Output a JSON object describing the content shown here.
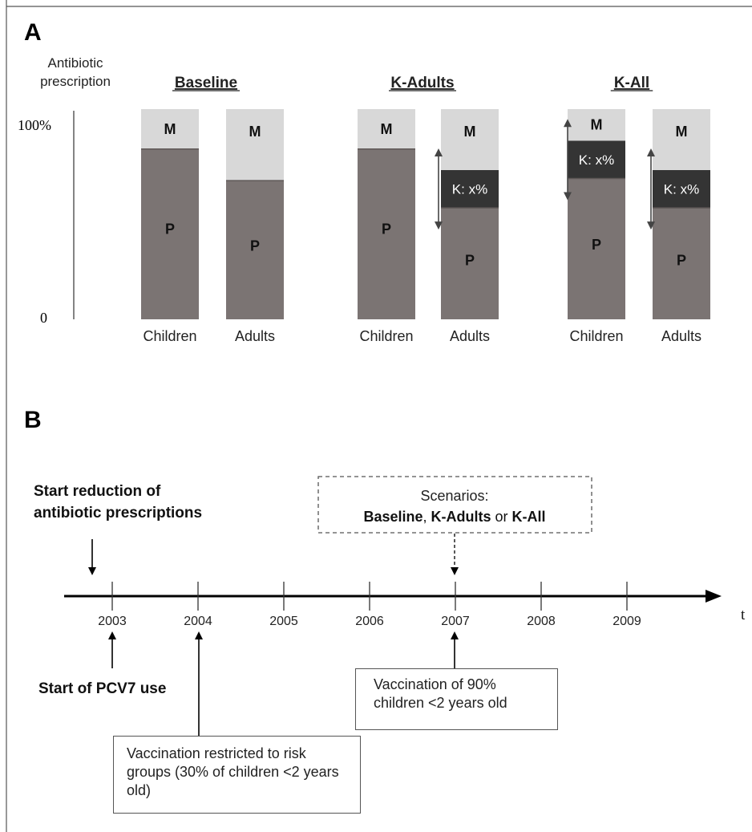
{
  "panel_a": {
    "label": "A",
    "y_axis_label_line1": "Antibiotic",
    "y_axis_label_line2": "prescription",
    "y_top_tick": "100%",
    "y_bottom_tick": "0",
    "groups": [
      {
        "title": "Baseline",
        "bars": [
          {
            "category": "Children",
            "segments": [
              {
                "label": "P",
                "share": 0.81
              },
              {
                "label": "M",
                "share": 0.19
              }
            ]
          },
          {
            "category": "Adults",
            "segments": [
              {
                "label": "P",
                "share": 0.66
              },
              {
                "label": "M",
                "share": 0.34
              }
            ]
          }
        ]
      },
      {
        "title": "K-Adults",
        "bars": [
          {
            "category": "Children",
            "segments": [
              {
                "label": "P",
                "share": 0.81
              },
              {
                "label": "M",
                "share": 0.19
              }
            ]
          },
          {
            "category": "Adults",
            "segments": [
              {
                "label": "P",
                "share": 0.53
              },
              {
                "label": "K: x%",
                "share": 0.18
              },
              {
                "label": "M",
                "share": 0.29
              }
            ]
          }
        ]
      },
      {
        "title": "K-All",
        "bars": [
          {
            "category": "Children",
            "segments": [
              {
                "label": "P",
                "share": 0.67
              },
              {
                "label": "K: x%",
                "share": 0.18
              },
              {
                "label": "M",
                "share": 0.15
              }
            ]
          },
          {
            "category": "Adults",
            "segments": [
              {
                "label": "P",
                "share": 0.53
              },
              {
                "label": "K: x%",
                "share": 0.18
              },
              {
                "label": "M",
                "share": 0.29
              }
            ]
          }
        ]
      }
    ],
    "colors": {
      "P": "#7b7473",
      "M": "#d8d8d8",
      "K": "#343434"
    }
  },
  "panel_b": {
    "label": "B",
    "axis_end_label": "t",
    "years": [
      "2003",
      "2004",
      "2005",
      "2006",
      "2007",
      "2008",
      "2009"
    ],
    "start_reduction_line1": "Start reduction of",
    "start_reduction_line2": "antibiotic prescriptions",
    "scenarios_line1": "Scenarios:",
    "scenario_baseline": "Baseline",
    "scenario_sep1": ", ",
    "scenario_k_adults": "K-Adults",
    "scenario_sep2": " or ",
    "scenario_k_all": "K-All",
    "start_pcv7": "Start of PCV7 use",
    "vacc_90": "Vaccination of 90% children <2 years old",
    "vacc_risk": "Vaccination restricted to risk groups (30% of children <2 years old)"
  }
}
